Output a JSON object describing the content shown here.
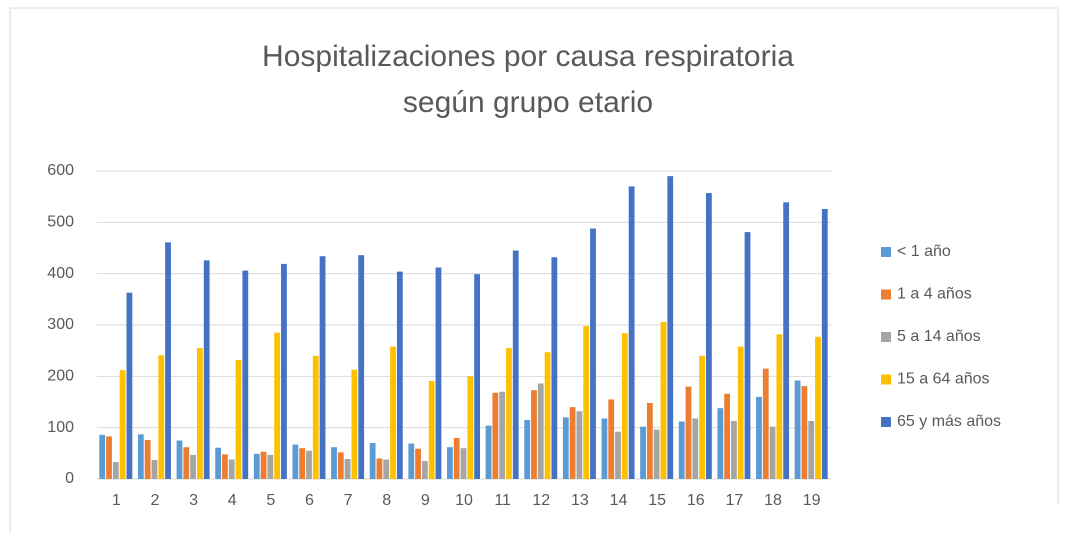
{
  "chart_data": {
    "type": "bar",
    "title": [
      "Hospitalizaciones por causa respiratoria",
      "según grupo etario"
    ],
    "categories": [
      "1",
      "2",
      "3",
      "4",
      "5",
      "6",
      "7",
      "8",
      "9",
      "10",
      "11",
      "12",
      "13",
      "14",
      "15",
      "16",
      "17",
      "18",
      "19"
    ],
    "series": [
      {
        "name": "< 1 año",
        "color": "#5b9bd5",
        "values": [
          86,
          87,
          75,
          61,
          49,
          67,
          62,
          70,
          69,
          62,
          104,
          115,
          120,
          118,
          102,
          112,
          138,
          160,
          192
        ]
      },
      {
        "name": "1 a 4 años",
        "color": "#ed7d31",
        "values": [
          83,
          76,
          62,
          48,
          53,
          60,
          52,
          40,
          59,
          80,
          168,
          173,
          140,
          155,
          148,
          180,
          166,
          215,
          181
        ]
      },
      {
        "name": "5 a 14 años",
        "color": "#a5a5a5",
        "values": [
          33,
          37,
          47,
          38,
          47,
          55,
          39,
          38,
          35,
          60,
          170,
          186,
          132,
          92,
          96,
          118,
          113,
          102,
          113
        ]
      },
      {
        "name": "15 a 64 años",
        "color": "#ffc000",
        "values": [
          212,
          241,
          255,
          232,
          285,
          240,
          213,
          258,
          191,
          200,
          255,
          247,
          298,
          284,
          306,
          240,
          258,
          282,
          277
        ]
      },
      {
        "name": "65 y más años",
        "color": "#4472c4",
        "values": [
          363,
          461,
          426,
          406,
          419,
          434,
          436,
          404,
          412,
          399,
          445,
          432,
          488,
          570,
          590,
          557,
          481,
          539,
          526
        ]
      }
    ],
    "ylim": [
      0,
      600
    ],
    "yticks": [
      0,
      100,
      200,
      300,
      400,
      500,
      600
    ],
    "grid": true,
    "legend": "right"
  }
}
